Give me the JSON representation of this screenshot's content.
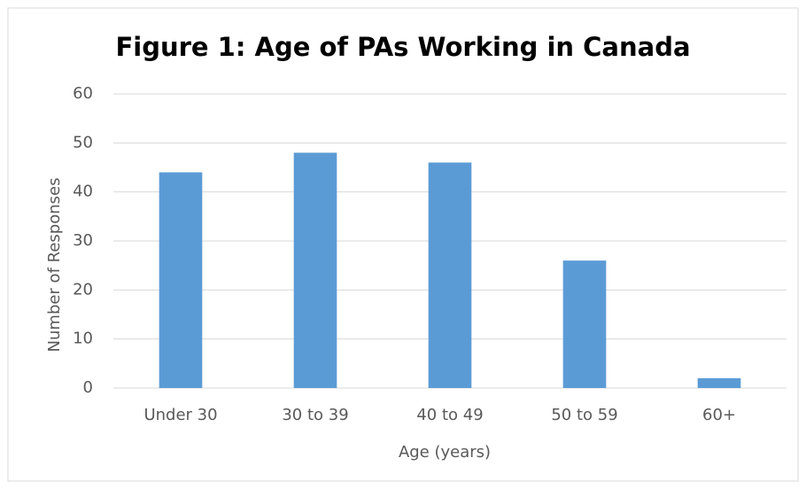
{
  "chart_data": {
    "type": "bar",
    "title": "Figure 1: Age of PAs Working in Canada",
    "x_label": "Age (years)",
    "y_label": "Number of Responses",
    "categories": [
      "Under 30",
      "30 to 39",
      "40 to 49",
      "50 to 59",
      "60+"
    ],
    "values": [
      44,
      48,
      46,
      26,
      2
    ],
    "color": "#5b9bd5",
    "ylim": [
      0,
      60
    ],
    "yticks": [
      0,
      10,
      20,
      30,
      40,
      50,
      60
    ],
    "grid": true
  }
}
